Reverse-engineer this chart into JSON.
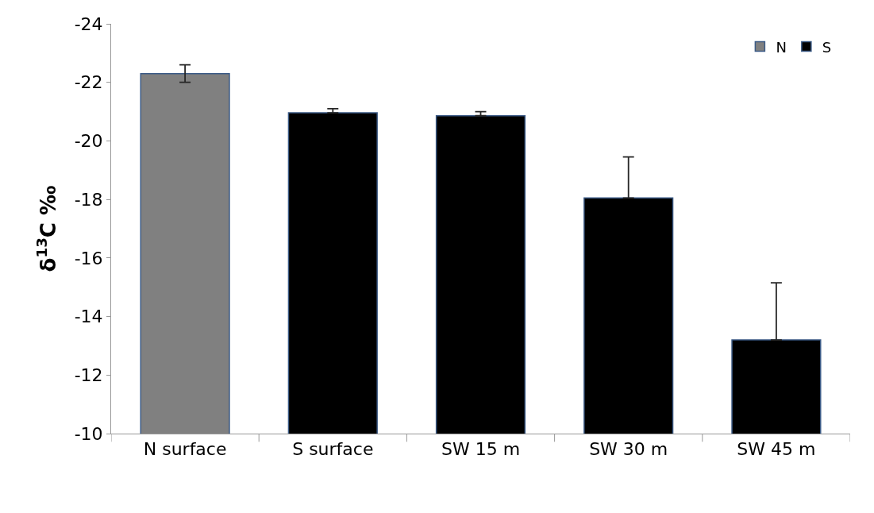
{
  "chart_data": {
    "type": "bar",
    "ylabel": "δ$^{13}$C ‰",
    "categories": [
      "N surface",
      "S surface",
      "SW 15 m",
      "SW 30 m",
      "SW 45 m"
    ],
    "series": [
      {
        "name": "N",
        "color": "#808080",
        "values": [
          -22.3,
          null,
          null,
          null,
          null
        ],
        "errors": [
          0.3,
          null,
          null,
          null,
          null
        ]
      },
      {
        "name": "S",
        "color": "#000000",
        "values": [
          null,
          -20.96,
          -20.86,
          -18.05,
          -13.2
        ],
        "errors": [
          null,
          [
            -21.1,
            -20.96
          ],
          [
            -21.0,
            -20.86
          ],
          [
            -19.45,
            -18.05
          ],
          [
            -15.15,
            -13.2
          ]
        ]
      }
    ],
    "ylim": [
      -10,
      -24
    ],
    "yticks": [
      -24,
      -22,
      -20,
      -18,
      -16,
      -14,
      -12,
      -10
    ],
    "legend": "top right"
  }
}
